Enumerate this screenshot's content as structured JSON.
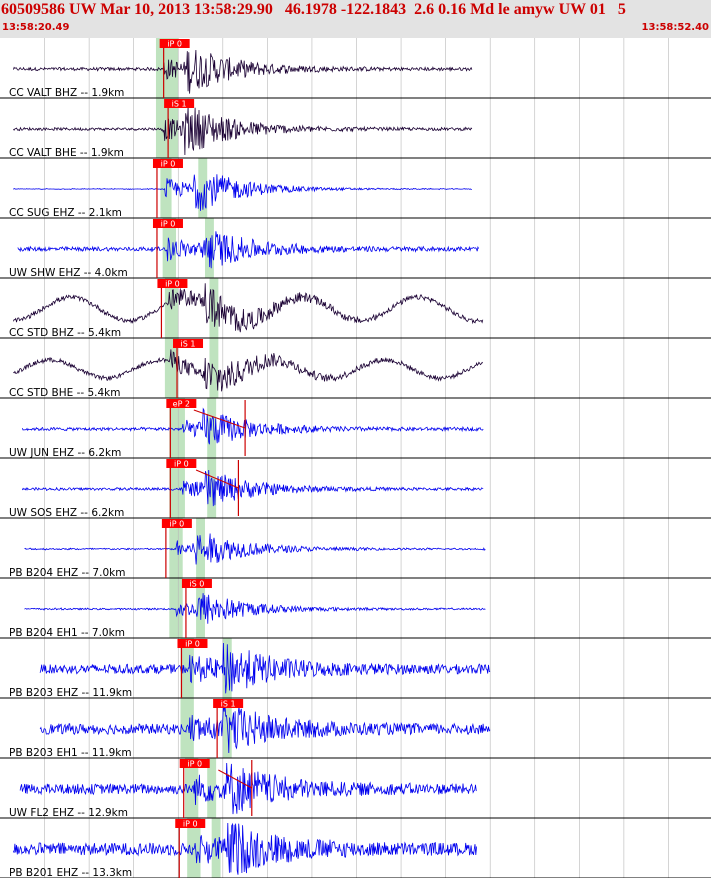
{
  "header": {
    "title": "60509586 UW Mar 10, 2013 13:58:29.90   46.1978 -122.1843  2.6 0.16 Md le amyw UW 01   5",
    "start_time": "13:58:20.49",
    "end_time": "13:58:52.40"
  },
  "colors": {
    "header_bg": "#e3e3e3",
    "header_text": "#cc0000",
    "pick_box": "#ff0000",
    "pick_line": "#cc0000",
    "window_band": "#bfe3bf",
    "trace_dark": "#1a0033",
    "trace_blue": "#0000ee",
    "grid": "#b8b8b8",
    "divider": "#000000"
  },
  "chart_data": {
    "type": "line",
    "x_range": [
      "13:58:20.49",
      "13:58:52.40"
    ],
    "x_range_seconds": [
      0,
      31.91
    ],
    "grid_seconds": [
      2,
      4,
      6,
      8,
      10,
      12,
      14,
      16,
      18,
      20,
      22,
      24,
      26,
      28,
      30
    ],
    "series": [
      {
        "name": "CC VALT BHZ -- 1.9km",
        "pick": "iP 0",
        "pick_s": 7.3,
        "band_s": [
          7.0,
          7.8
        ],
        "p_s": 7.3,
        "s_s": 8.4,
        "amp": 0.75,
        "len_s": 21.2,
        "start_s": 0.0,
        "lp_amp": 0.0,
        "lp_period": 0,
        "noise": 0.06,
        "color": "dark",
        "red_line": true
      },
      {
        "name": "CC VALT BHE -- 1.9km",
        "pick": "iS 1",
        "pick_s": 7.5,
        "band_s": [
          7.0,
          7.8
        ],
        "p_s": 7.3,
        "s_s": 8.3,
        "amp": 0.8,
        "len_s": 21.2,
        "start_s": 0.0,
        "lp_amp": 0.0,
        "lp_period": 0,
        "noise": 0.05,
        "color": "dark",
        "red_line": true
      },
      {
        "name": "CC SUG EHZ -- 2.1km",
        "pick": "iP 0",
        "pick_s": 7.0,
        "band_s": [
          7.2,
          7.7
        ],
        "p_s": 7.4,
        "s_s": 8.6,
        "amp": 0.8,
        "len_s": 21.2,
        "start_s": 0.0,
        "lp_amp": 0.0,
        "lp_period": 0,
        "noise": 0.01,
        "color": "blue",
        "red_line": true
      },
      {
        "name": "UW SHW EHZ -- 4.0km",
        "pick": "iP 0",
        "pick_s": 7.0,
        "band_s": [
          7.3,
          7.9
        ],
        "p_s": 7.5,
        "s_s": 9.0,
        "amp": 0.75,
        "len_s": 21.3,
        "start_s": 0.2,
        "lp_amp": 0.0,
        "lp_period": 0,
        "noise": 0.08,
        "color": "blue",
        "red_line": true
      },
      {
        "name": "CC STD BHZ -- 5.4km",
        "pick": "iP 0",
        "pick_s": 7.2,
        "band_s": [
          7.4,
          8.0
        ],
        "p_s": 7.6,
        "s_s": 9.2,
        "amp": 0.7,
        "len_s": 21.7,
        "start_s": 0.0,
        "lp_amp": 0.45,
        "lp_period": 5.2,
        "noise": 0.09,
        "color": "dark",
        "red_line": true
      },
      {
        "name": "CC STD BHE -- 5.4km",
        "pick": "iS 1",
        "pick_s": 7.9,
        "band_s": [
          7.4,
          8.0
        ],
        "p_s": 7.6,
        "s_s": 9.2,
        "amp": 0.7,
        "len_s": 21.7,
        "start_s": 0.0,
        "lp_amp": 0.35,
        "lp_period": 5.0,
        "noise": 0.08,
        "color": "dark",
        "red_line": true
      },
      {
        "name": "UW JUN EHZ -- 6.2km",
        "pick": "eP 2",
        "pick_s": 7.6,
        "band_s": [
          7.6,
          8.3
        ],
        "p_s": 8.2,
        "s_s": 9.1,
        "amp": 0.6,
        "len_s": 21.3,
        "start_s": 0.4,
        "lp_amp": 0.0,
        "lp_period": 0,
        "noise": 0.06,
        "color": "blue",
        "red_line": true
      },
      {
        "name": "UW SOS EHZ -- 6.2km",
        "pick": "iP 0",
        "pick_s": 7.6,
        "band_s": [
          7.6,
          8.3
        ],
        "p_s": 8.2,
        "s_s": 9.2,
        "amp": 0.6,
        "len_s": 21.3,
        "start_s": 0.4,
        "lp_amp": 0.0,
        "lp_period": 0,
        "noise": 0.05,
        "color": "blue",
        "red_line": true
      },
      {
        "name": "PB B204 EHZ -- 7.0km",
        "pick": "iP 0",
        "pick_s": 7.4,
        "band_s": [
          7.6,
          8.2
        ],
        "p_s": 7.9,
        "s_s": 8.8,
        "amp": 0.6,
        "len_s": 21.3,
        "start_s": 0.5,
        "lp_amp": 0.0,
        "lp_period": 0,
        "noise": 0.03,
        "color": "blue",
        "red_line": true
      },
      {
        "name": "PB B204 EH1 -- 7.0km",
        "pick": "iS 0",
        "pick_s": 8.3,
        "band_s": [
          7.6,
          8.2
        ],
        "p_s": 7.9,
        "s_s": 8.8,
        "amp": 0.6,
        "len_s": 21.3,
        "start_s": 0.5,
        "lp_amp": 0.0,
        "lp_period": 0,
        "noise": 0.03,
        "color": "blue",
        "red_line": true
      },
      {
        "name": "PB B203 EHZ -- 11.9km",
        "pick": "iP 0",
        "pick_s": 8.1,
        "band_s": [
          8.1,
          8.7
        ],
        "p_s": 8.5,
        "s_s": 10.0,
        "amp": 0.8,
        "len_s": 20.8,
        "start_s": 1.2,
        "lp_amp": 0.0,
        "lp_period": 0,
        "noise": 0.18,
        "color": "blue",
        "red_line": true
      },
      {
        "name": "PB B203 EH1 -- 11.9km",
        "pick": "iS 1",
        "pick_s": 9.7,
        "band_s": [
          8.1,
          8.7
        ],
        "p_s": 8.5,
        "s_s": 10.0,
        "amp": 0.8,
        "len_s": 20.8,
        "start_s": 1.2,
        "lp_amp": 0.0,
        "lp_period": 0,
        "noise": 0.2,
        "color": "blue",
        "red_line": true
      },
      {
        "name": "UW FL2 EHZ -- 12.9km",
        "pick": "iP 0",
        "pick_s": 8.2,
        "band_s": [
          8.3,
          8.9
        ],
        "p_s": 8.7,
        "s_s": 10.1,
        "amp": 0.85,
        "len_s": 21.1,
        "start_s": 0.3,
        "lp_amp": 0.0,
        "lp_period": 0,
        "noise": 0.2,
        "color": "blue",
        "red_line": true
      },
      {
        "name": "PB B201 EHZ -- 13.3km",
        "pick": "iP 0",
        "pick_s": 8.0,
        "band_s": [
          8.4,
          9.0
        ],
        "p_s": 8.8,
        "s_s": 10.2,
        "amp": 0.85,
        "len_s": 21.4,
        "start_s": 0.0,
        "lp_amp": 0.0,
        "lp_period": 0,
        "noise": 0.24,
        "color": "blue",
        "red_line": true
      }
    ],
    "second_bands_s": [
      [
        7.6,
        8.0
      ],
      [
        7.6,
        8.0
      ],
      [
        8.9,
        9.3
      ],
      [
        9.2,
        9.6
      ],
      [
        9.4,
        9.8
      ],
      [
        9.4,
        9.8
      ],
      [
        9.3,
        9.7
      ],
      [
        9.3,
        9.7
      ],
      [
        8.8,
        9.2
      ],
      [
        8.8,
        9.2
      ],
      [
        10.0,
        10.4
      ],
      [
        10.0,
        10.4
      ],
      [
        9.3,
        9.7
      ],
      [
        9.5,
        9.9
      ]
    ],
    "coda_marks": [
      {
        "index": 6,
        "start_s": 8.7,
        "end_s": 11.0
      },
      {
        "index": 7,
        "start_s": 8.8,
        "end_s": 10.7
      },
      {
        "index": 12,
        "start_s": 9.8,
        "end_s": 11.3
      }
    ],
    "grid": true
  }
}
